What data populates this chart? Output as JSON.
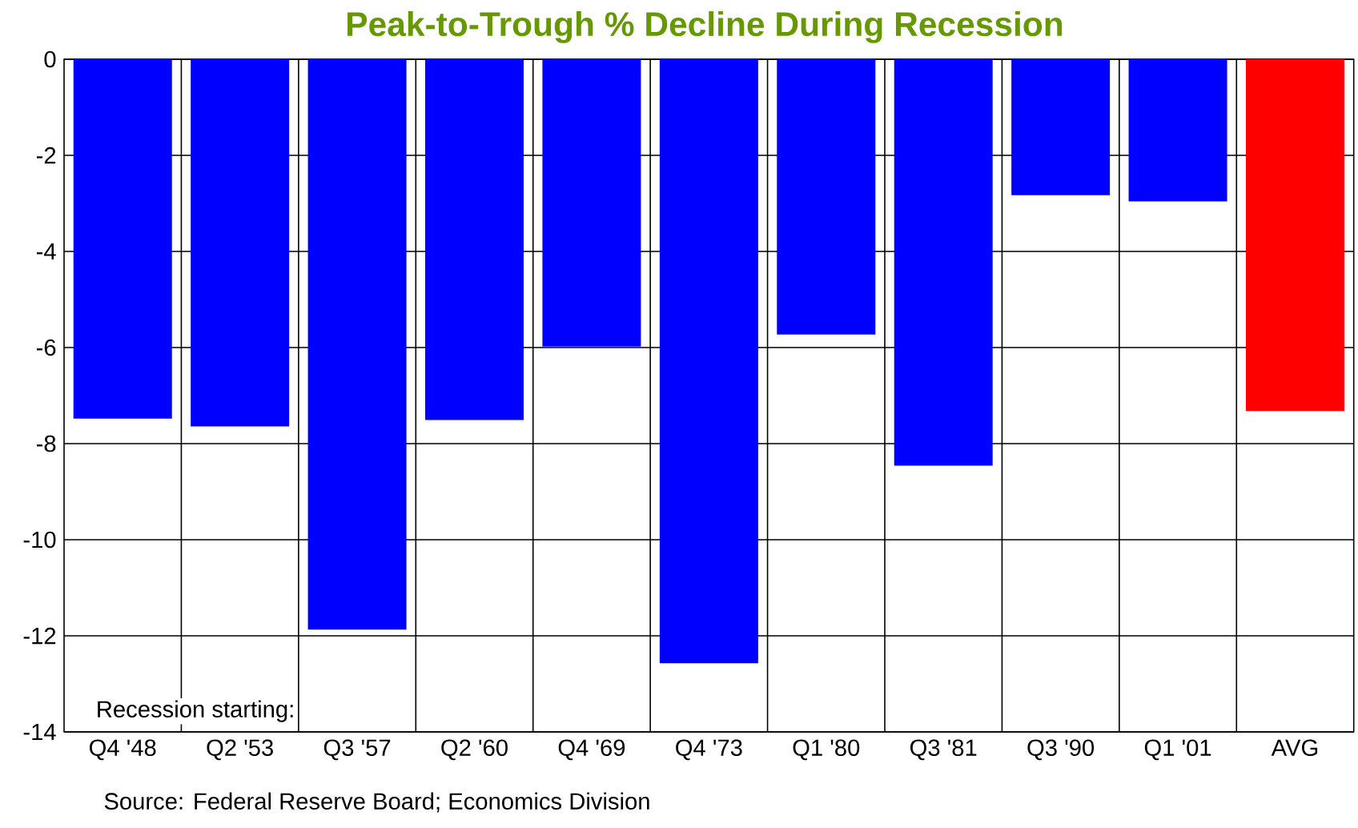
{
  "chart_data": {
    "type": "bar",
    "title": "Peak-to-Trough % Decline During Recession",
    "categories": [
      "Q4 '48",
      "Q2 '53",
      "Q3 '57",
      "Q2 '60",
      "Q4 '69",
      "Q4 '73",
      "Q1 '80",
      "Q3 '81",
      "Q3 '90",
      "Q1 '01",
      "AVG"
    ],
    "values": [
      -7.48,
      -7.64,
      -11.87,
      -7.51,
      -5.98,
      -12.57,
      -5.73,
      -8.46,
      -2.83,
      -2.96,
      -7.32
    ],
    "colors": [
      "#0000ff",
      "#0000ff",
      "#0000ff",
      "#0000ff",
      "#0000ff",
      "#0000ff",
      "#0000ff",
      "#0000ff",
      "#0000ff",
      "#0000ff",
      "#ff0000"
    ],
    "ylim": [
      -14,
      0
    ],
    "yticks": [
      -14,
      -12,
      -10,
      -8,
      -6,
      -4,
      -2,
      0
    ],
    "grid": true,
    "annotations": [
      "Recession starting:",
      "Source: Federal Reserve Board; Economics Division"
    ]
  }
}
